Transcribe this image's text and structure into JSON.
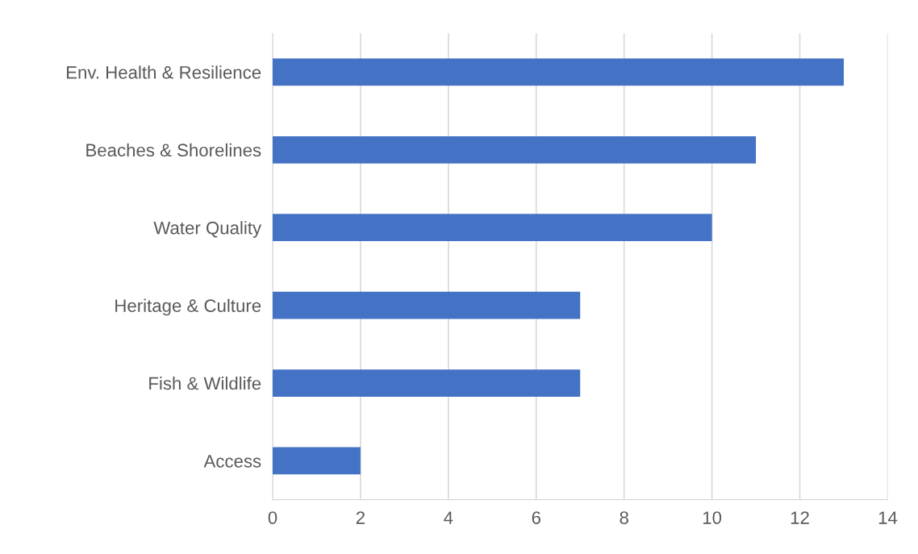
{
  "chart_data": {
    "type": "bar",
    "orientation": "horizontal",
    "categories": [
      "Env. Health & Resilience",
      "Beaches & Shorelines",
      "Water Quality",
      "Heritage & Culture",
      "Fish & Wildlife",
      "Access"
    ],
    "values": [
      13,
      11,
      10,
      7,
      7,
      2
    ],
    "color": "#4472c4",
    "xlim": [
      0,
      14
    ],
    "xticks": [
      0,
      2,
      4,
      6,
      8,
      10,
      12,
      14
    ],
    "grid": "x"
  }
}
